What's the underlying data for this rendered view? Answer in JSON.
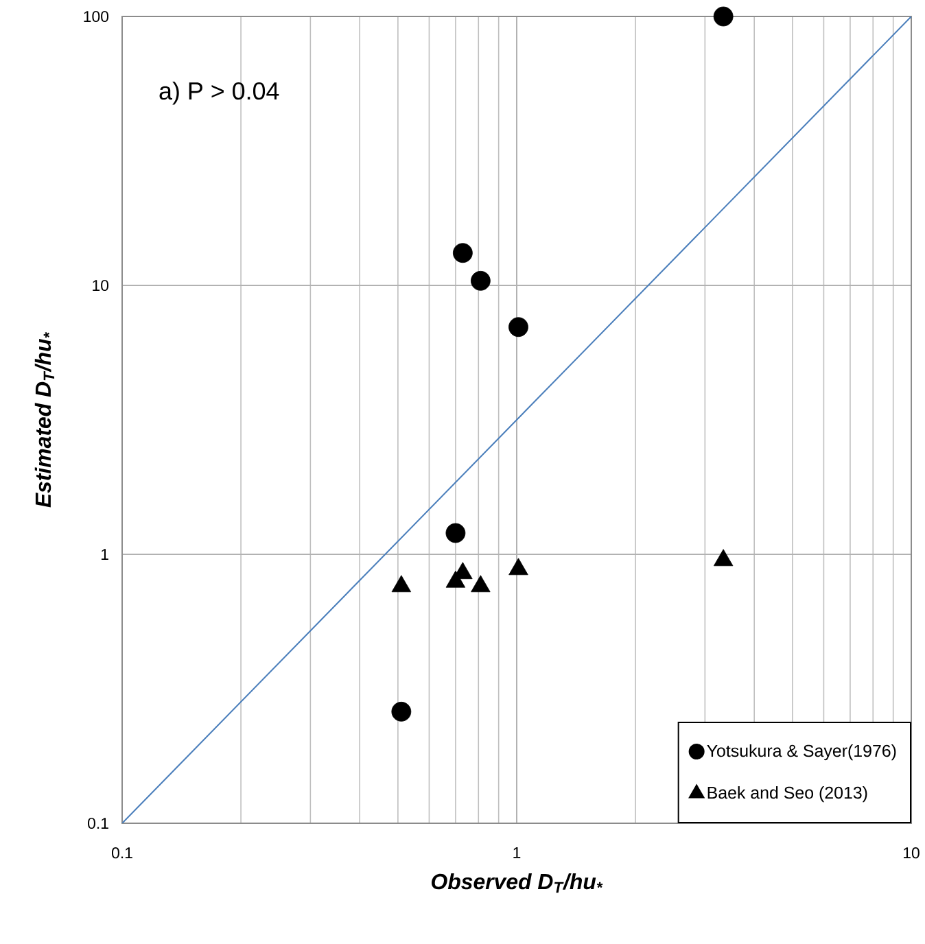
{
  "chart_data": {
    "type": "scatter",
    "xlabel": "Observed D$_{T}$/hu$_{*}$",
    "ylabel": "Estimated D$_{T}$/hu$_{*}$",
    "annotations": [
      "a) P > 0.04"
    ],
    "log": "xy",
    "grid": true,
    "legend": "bottom right",
    "xlim": [
      0.1,
      10
    ],
    "ylim": [
      0.1,
      100
    ],
    "xticks": [
      0.1,
      1,
      10
    ],
    "yticks": [
      0.1,
      1,
      10,
      100
    ],
    "series": [
      {
        "name": "Yotsukura & Sayer(1976)",
        "color": "#000000",
        "marker": "circle",
        "x": [
          3.34,
          0.73,
          0.81,
          1.01,
          0.7,
          0.51
        ],
        "values": [
          100,
          13.2,
          10.4,
          7.0,
          1.2,
          0.26
        ]
      },
      {
        "name": "Baek and Seo (2013)",
        "color": "#000000",
        "marker": "triangle",
        "x": [
          0.51,
          0.7,
          0.73,
          0.81,
          1.01,
          3.34
        ],
        "values": [
          0.76,
          0.79,
          0.85,
          0.76,
          0.88,
          0.95
        ]
      },
      {
        "type": "line",
        "color": "#4a7ebb",
        "marker": "none",
        "x": [
          0.1,
          10
        ],
        "values": [
          0.1,
          100
        ]
      }
    ]
  }
}
